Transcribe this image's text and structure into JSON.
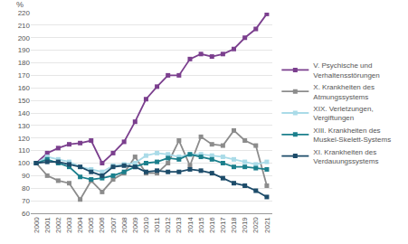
{
  "chart_data": {
    "type": "line",
    "y_label": "%",
    "x": [
      2000,
      2001,
      2002,
      2003,
      2004,
      2005,
      2006,
      2007,
      2008,
      2009,
      2010,
      2011,
      2012,
      2013,
      2014,
      2015,
      2016,
      2017,
      2018,
      2019,
      2020,
      2021
    ],
    "series": [
      {
        "name": "V. Psychische und Verhaltensstörungen",
        "color": "#7b3f8e",
        "values": [
          100,
          108,
          112,
          115,
          116,
          118,
          100,
          108,
          117,
          133,
          151,
          161,
          170,
          170,
          183,
          187,
          185,
          187,
          191,
          200,
          207,
          219
        ]
      },
      {
        "name": "X. Krankheiten des Atmungssystems",
        "color": "#8c8c8c",
        "values": [
          100,
          90,
          86,
          84,
          71,
          86,
          77,
          87,
          92,
          105,
          92,
          92,
          100,
          118,
          98,
          121,
          115,
          114,
          126,
          118,
          114,
          82
        ]
      },
      {
        "name": "XIX. Verletzungen, Vergiftungen",
        "color": "#aadbe8",
        "values": [
          100,
          105,
          103,
          101,
          97,
          95,
          93,
          98,
          99,
          100,
          106,
          108,
          107,
          105,
          107,
          107,
          106,
          105,
          103,
          101,
          99,
          101
        ]
      },
      {
        "name": "XIII. Krankheiten des Muskel-Skelett-Systems",
        "color": "#1b7f8c",
        "values": [
          100,
          103,
          100,
          97,
          89,
          87,
          88,
          90,
          93,
          97,
          100,
          101,
          104,
          103,
          107,
          105,
          103,
          100,
          97,
          97,
          96,
          95
        ]
      },
      {
        "name": "XI. Krankheiten des Verdauungssystems",
        "color": "#1d4c6a",
        "values": [
          100,
          101,
          101,
          99,
          97,
          93,
          90,
          97,
          98,
          97,
          93,
          94,
          93,
          93,
          95,
          94,
          92,
          88,
          84,
          82,
          78,
          73
        ]
      }
    ],
    "xlim": [
      1999.5,
      2021.5
    ],
    "xticks": [
      2000,
      2001,
      2002,
      2003,
      2004,
      2005,
      2006,
      2007,
      2008,
      2009,
      2010,
      2011,
      2012,
      2013,
      2014,
      2015,
      2016,
      2017,
      2018,
      2019,
      2020,
      2021
    ],
    "ylim": [
      60,
      220
    ],
    "yticks": [
      60,
      70,
      80,
      90,
      100,
      110,
      120,
      130,
      140,
      150,
      160,
      170,
      180,
      190,
      200,
      210,
      220
    ],
    "grid": true,
    "legend": "right",
    "marker": "square"
  }
}
